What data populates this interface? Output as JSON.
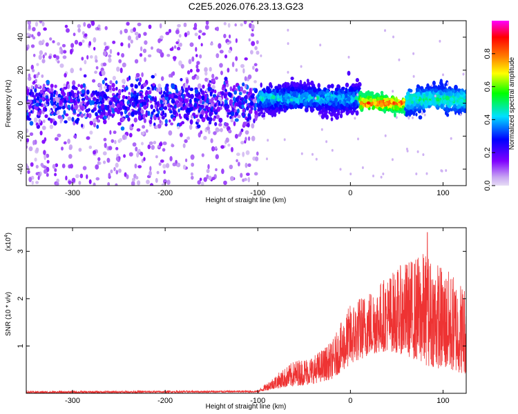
{
  "title": "C2E5.2026.076.23.13.G23",
  "chart_data": [
    {
      "type": "heatmap",
      "xlabel": "Height of straight line (km)",
      "ylabel": "Frequency (Hz)",
      "xlim": [
        -350,
        125
      ],
      "ylim": [
        -50,
        50
      ],
      "xticks": [
        -300,
        -200,
        -100,
        0,
        100
      ],
      "yticks": [
        -40,
        -20,
        0,
        20,
        40
      ],
      "colorbar": {
        "label": "Normalized spectral amplitude",
        "range": [
          0,
          1
        ],
        "ticks": [
          0.0,
          0.2,
          0.4,
          0.6,
          0.8
        ],
        "colormap": [
          "#e6dcf5",
          "#7f00ff",
          "#0000ff",
          "#00e0ff",
          "#00ff00",
          "#ffff00",
          "#ff8000",
          "#ff0000",
          "#ff00ff"
        ]
      },
      "regions": [
        {
          "x_range": [
            -350,
            -100
          ],
          "freq_center": 0,
          "freq_spread": 50,
          "amplitude": [
            0.05,
            0.25
          ],
          "note": "broad diffuse noise"
        },
        {
          "x_range": [
            -100,
            10
          ],
          "freq_center": 3,
          "freq_spread": 8,
          "amplitude": [
            0.2,
            0.5
          ]
        },
        {
          "x_range": [
            10,
            60
          ],
          "freq_center": 0,
          "freq_spread": 4,
          "amplitude": [
            0.5,
            0.9
          ],
          "note": "peak red/magenta"
        },
        {
          "x_range": [
            60,
            125
          ],
          "freq_center": 2,
          "freq_spread": 7,
          "amplitude": [
            0.3,
            0.55
          ]
        }
      ]
    },
    {
      "type": "line",
      "xlabel": "Height of straight line (km)",
      "ylabel": "SNR (10 * v/v)",
      "y_exponent": "(x10",
      "y_exponent_power": "4",
      "y_exponent_close": ")",
      "xlim": [
        -350,
        125
      ],
      "ylim": [
        0,
        3.5
      ],
      "xticks": [
        -300,
        -200,
        -100,
        0,
        100
      ],
      "yticks": [
        1,
        2,
        3
      ],
      "color": "#ee3333",
      "series_envelope": {
        "x": [
          -350,
          -100,
          -80,
          -60,
          -40,
          -20,
          0,
          20,
          40,
          60,
          80,
          100,
          125
        ],
        "lower": [
          0.0,
          0.02,
          0.1,
          0.15,
          0.2,
          0.3,
          0.6,
          0.8,
          0.9,
          0.8,
          0.6,
          0.5,
          0.4
        ],
        "upper": [
          0.05,
          0.06,
          0.4,
          0.7,
          0.8,
          1.1,
          1.9,
          2.2,
          2.5,
          2.8,
          3.0,
          2.7,
          2.3
        ],
        "peak_spike": {
          "x": 83,
          "y": 3.4
        }
      }
    }
  ]
}
